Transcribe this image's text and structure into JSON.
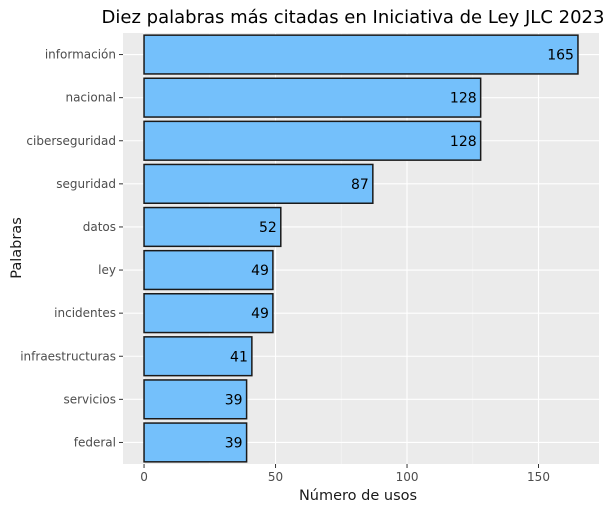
{
  "chart_data": {
    "type": "bar",
    "orientation": "horizontal",
    "title": "Diez palabras más citadas en Iniciativa de Ley JLC 2023",
    "xlabel": "Número de usos",
    "ylabel": "Palabras",
    "categories": [
      "información",
      "nacional",
      "ciberseguridad",
      "seguridad",
      "datos",
      "ley",
      "incidentes",
      "infraestructuras",
      "servicios",
      "federal"
    ],
    "values": [
      165,
      128,
      128,
      87,
      52,
      49,
      49,
      41,
      39,
      39
    ],
    "data_labels": [
      "165",
      "128",
      "128",
      "87",
      "52",
      "49",
      "49",
      "41",
      "39",
      "39"
    ],
    "xlim": [
      -8,
      173
    ],
    "xticks": [
      0,
      50,
      100,
      150
    ],
    "xtick_labels": [
      "0",
      "50",
      "100",
      "150"
    ],
    "grid": true,
    "colors": {
      "bar_fill": "#74c0fb",
      "bar_stroke": "#1a1a1a",
      "panel_background": "#ebebeb",
      "grid_major": "#ffffff",
      "grid_minor": "#f5f5f5"
    }
  }
}
